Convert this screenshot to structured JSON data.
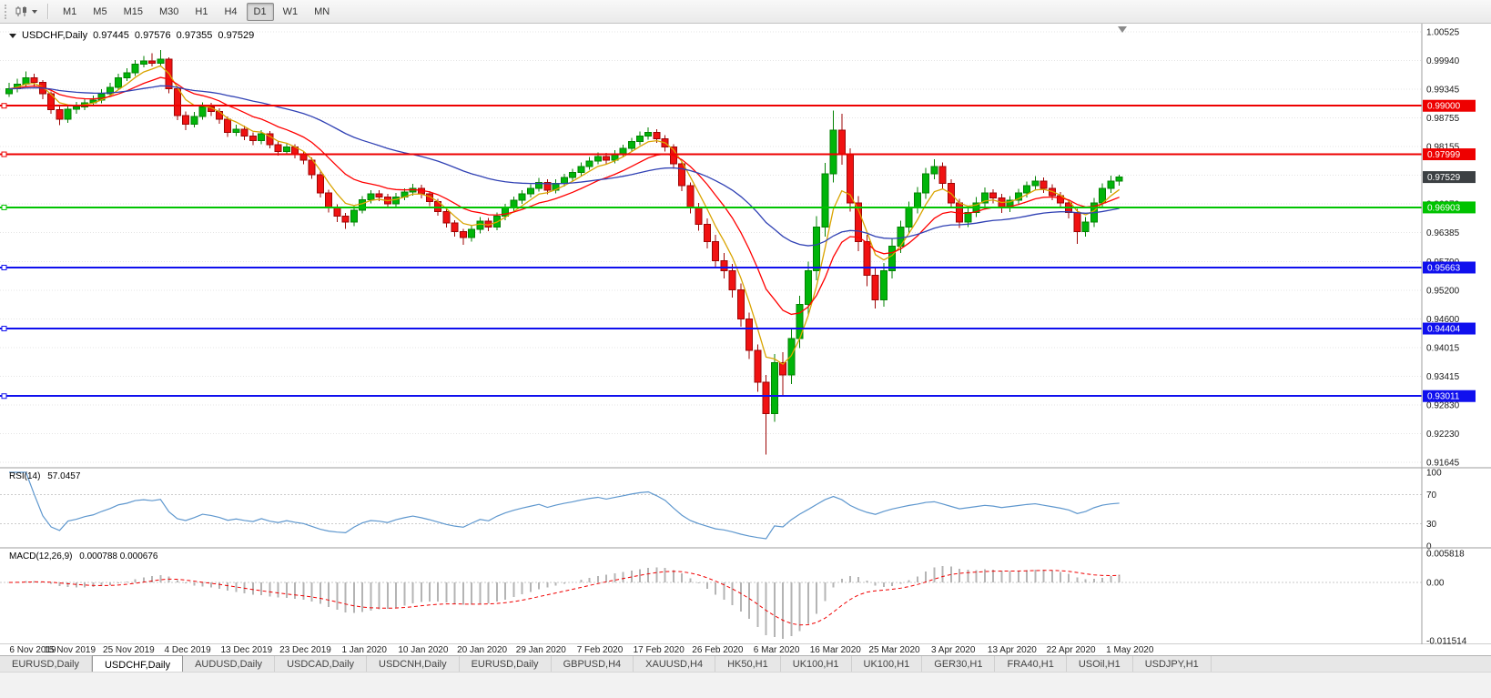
{
  "toolbar": {
    "timeframes": [
      "M1",
      "M5",
      "M15",
      "M30",
      "H1",
      "H4",
      "D1",
      "W1",
      "MN"
    ],
    "active_timeframe": "D1"
  },
  "chart": {
    "title": "USDCHF,Daily",
    "ohlc": {
      "open": "0.97445",
      "high": "0.97576",
      "low": "0.97355",
      "close": "0.97529"
    }
  },
  "chart_data": {
    "type": "candlestick",
    "symbol": "USDCHF",
    "timeframe": "Daily",
    "x_labels": [
      "6 Nov 2019",
      "15 Nov 2019",
      "25 Nov 2019",
      "4 Dec 2019",
      "13 Dec 2019",
      "23 Dec 2019",
      "1 Jan 2020",
      "10 Jan 2020",
      "20 Jan 2020",
      "29 Jan 2020",
      "7 Feb 2020",
      "17 Feb 2020",
      "26 Feb 2020",
      "6 Mar 2020",
      "16 Mar 2020",
      "25 Mar 2020",
      "3 Apr 2020",
      "13 Apr 2020",
      "22 Apr 2020",
      "1 May 2020"
    ],
    "y_axis_labels": [
      "1.00525",
      "0.99940",
      "0.99345",
      "0.98755",
      "0.98155",
      "0.97570",
      "0.96970",
      "0.96385",
      "0.95790",
      "0.95200",
      "0.94600",
      "0.94015",
      "0.93415",
      "0.92830",
      "0.92230",
      "0.91645"
    ],
    "y_axis_range": {
      "top": 1.00525,
      "bottom": 0.91645
    },
    "colors": {
      "up": "#00B50A",
      "up_border": "#038203",
      "down": "#F01212",
      "down_border": "#9E0505",
      "grid": "#E4E4E4"
    },
    "candles": [
      [
        0.9925,
        0.9947,
        0.9918,
        0.9935
      ],
      [
        0.9935,
        0.9956,
        0.9928,
        0.9945
      ],
      [
        0.9945,
        0.9971,
        0.994,
        0.9958
      ],
      [
        0.9958,
        0.9966,
        0.9939,
        0.9948
      ],
      [
        0.9948,
        0.9953,
        0.9914,
        0.9925
      ],
      [
        0.9925,
        0.993,
        0.9884,
        0.9892
      ],
      [
        0.9892,
        0.9899,
        0.986,
        0.9872
      ],
      [
        0.9872,
        0.9901,
        0.9865,
        0.9893
      ],
      [
        0.9893,
        0.9908,
        0.9884,
        0.9898
      ],
      [
        0.9898,
        0.9915,
        0.9891,
        0.9906
      ],
      [
        0.9906,
        0.9921,
        0.9899,
        0.9912
      ],
      [
        0.9912,
        0.9934,
        0.9905,
        0.9925
      ],
      [
        0.9925,
        0.9947,
        0.9919,
        0.9938
      ],
      [
        0.9938,
        0.9966,
        0.9932,
        0.9958
      ],
      [
        0.9958,
        0.9977,
        0.9951,
        0.9968
      ],
      [
        0.9968,
        0.9994,
        0.9961,
        0.9986
      ],
      [
        0.9986,
        1.0003,
        0.9979,
        0.9992
      ],
      [
        0.9992,
        1.0008,
        0.9981,
        0.9988
      ],
      [
        0.9988,
        1.0015,
        0.9982,
        0.9996
      ],
      [
        0.9996,
        1.0,
        0.9926,
        0.9935
      ],
      [
        0.9935,
        0.9941,
        0.987,
        0.988
      ],
      [
        0.988,
        0.9888,
        0.985,
        0.9862
      ],
      [
        0.9862,
        0.9887,
        0.9855,
        0.9878
      ],
      [
        0.9878,
        0.9907,
        0.9871,
        0.9898
      ],
      [
        0.9898,
        0.9906,
        0.9879,
        0.9888
      ],
      [
        0.9888,
        0.9895,
        0.9863,
        0.9872
      ],
      [
        0.9872,
        0.9878,
        0.9836,
        0.9845
      ],
      [
        0.9845,
        0.9861,
        0.9838,
        0.9852
      ],
      [
        0.9852,
        0.9859,
        0.9829,
        0.9838
      ],
      [
        0.9838,
        0.9845,
        0.9819,
        0.9828
      ],
      [
        0.9828,
        0.985,
        0.9821,
        0.9842
      ],
      [
        0.9842,
        0.9848,
        0.9812,
        0.982
      ],
      [
        0.982,
        0.9827,
        0.9797,
        0.9806
      ],
      [
        0.9806,
        0.9823,
        0.9799,
        0.9815
      ],
      [
        0.9815,
        0.9821,
        0.9792,
        0.98
      ],
      [
        0.98,
        0.9806,
        0.9779,
        0.9788
      ],
      [
        0.9788,
        0.9793,
        0.9749,
        0.9758
      ],
      [
        0.9758,
        0.9764,
        0.9711,
        0.972
      ],
      [
        0.972,
        0.9727,
        0.968,
        0.969
      ],
      [
        0.969,
        0.9697,
        0.966,
        0.9672
      ],
      [
        0.9672,
        0.9679,
        0.9646,
        0.966
      ],
      [
        0.966,
        0.9693,
        0.9652,
        0.9685
      ],
      [
        0.9685,
        0.9714,
        0.9678,
        0.9706
      ],
      [
        0.9706,
        0.9726,
        0.9699,
        0.9718
      ],
      [
        0.9718,
        0.9726,
        0.9703,
        0.9712
      ],
      [
        0.9712,
        0.9718,
        0.9689,
        0.9698
      ],
      [
        0.9698,
        0.972,
        0.9691,
        0.9712
      ],
      [
        0.9712,
        0.973,
        0.9705,
        0.9722
      ],
      [
        0.9722,
        0.9739,
        0.9715,
        0.973
      ],
      [
        0.973,
        0.9737,
        0.9709,
        0.9718
      ],
      [
        0.9718,
        0.9724,
        0.9693,
        0.9702
      ],
      [
        0.9702,
        0.9708,
        0.9673,
        0.9682
      ],
      [
        0.9682,
        0.9688,
        0.9649,
        0.9658
      ],
      [
        0.9658,
        0.9664,
        0.963,
        0.964
      ],
      [
        0.964,
        0.9646,
        0.9613,
        0.9628
      ],
      [
        0.9628,
        0.9653,
        0.962,
        0.9645
      ],
      [
        0.9645,
        0.967,
        0.9637,
        0.9662
      ],
      [
        0.9662,
        0.9669,
        0.9641,
        0.965
      ],
      [
        0.965,
        0.968,
        0.9643,
        0.9672
      ],
      [
        0.9672,
        0.9698,
        0.9664,
        0.969
      ],
      [
        0.969,
        0.9713,
        0.9683,
        0.9705
      ],
      [
        0.9705,
        0.9726,
        0.9698,
        0.9718
      ],
      [
        0.9718,
        0.9738,
        0.9711,
        0.973
      ],
      [
        0.973,
        0.9751,
        0.9723,
        0.9742
      ],
      [
        0.9742,
        0.9748,
        0.9717,
        0.9726
      ],
      [
        0.9726,
        0.9748,
        0.9719,
        0.974
      ],
      [
        0.974,
        0.976,
        0.9733,
        0.9752
      ],
      [
        0.9752,
        0.977,
        0.9745,
        0.9762
      ],
      [
        0.9762,
        0.9783,
        0.9755,
        0.9775
      ],
      [
        0.9775,
        0.9794,
        0.9768,
        0.9786
      ],
      [
        0.9786,
        0.9804,
        0.9779,
        0.9795
      ],
      [
        0.9795,
        0.9803,
        0.9779,
        0.9788
      ],
      [
        0.9788,
        0.9808,
        0.9781,
        0.98
      ],
      [
        0.98,
        0.982,
        0.9793,
        0.9812
      ],
      [
        0.9812,
        0.9834,
        0.9805,
        0.9826
      ],
      [
        0.9826,
        0.9847,
        0.9819,
        0.9838
      ],
      [
        0.9838,
        0.9855,
        0.983,
        0.9845
      ],
      [
        0.9845,
        0.9852,
        0.9823,
        0.9832
      ],
      [
        0.9832,
        0.9839,
        0.9806,
        0.9815
      ],
      [
        0.9815,
        0.9821,
        0.977,
        0.978
      ],
      [
        0.978,
        0.9786,
        0.9724,
        0.9735
      ],
      [
        0.9735,
        0.9742,
        0.9678,
        0.969
      ],
      [
        0.969,
        0.97,
        0.9642,
        0.9655
      ],
      [
        0.9655,
        0.9668,
        0.9606,
        0.962
      ],
      [
        0.962,
        0.9634,
        0.9566,
        0.958
      ],
      [
        0.958,
        0.9596,
        0.9544,
        0.956
      ],
      [
        0.956,
        0.9574,
        0.9504,
        0.952
      ],
      [
        0.952,
        0.9533,
        0.9444,
        0.946
      ],
      [
        0.946,
        0.9473,
        0.9378,
        0.9395
      ],
      [
        0.9395,
        0.9408,
        0.931,
        0.933
      ],
      [
        0.933,
        0.9345,
        0.918,
        0.9265
      ],
      [
        0.9265,
        0.9388,
        0.9248,
        0.937
      ],
      [
        0.937,
        0.9392,
        0.93,
        0.9345
      ],
      [
        0.9345,
        0.944,
        0.9326,
        0.942
      ],
      [
        0.942,
        0.9508,
        0.94,
        0.949
      ],
      [
        0.949,
        0.9578,
        0.9468,
        0.956
      ],
      [
        0.956,
        0.9672,
        0.954,
        0.965
      ],
      [
        0.965,
        0.9782,
        0.963,
        0.976
      ],
      [
        0.976,
        0.989,
        0.9742,
        0.985
      ],
      [
        0.985,
        0.9884,
        0.9778,
        0.98
      ],
      [
        0.98,
        0.9812,
        0.9682,
        0.97
      ],
      [
        0.97,
        0.9714,
        0.96,
        0.962
      ],
      [
        0.962,
        0.9634,
        0.9528,
        0.955
      ],
      [
        0.955,
        0.9566,
        0.9482,
        0.95
      ],
      [
        0.95,
        0.9576,
        0.9486,
        0.956
      ],
      [
        0.956,
        0.9626,
        0.9544,
        0.961
      ],
      [
        0.961,
        0.9663,
        0.9596,
        0.965
      ],
      [
        0.965,
        0.9702,
        0.9637,
        0.969
      ],
      [
        0.969,
        0.9732,
        0.9678,
        0.972
      ],
      [
        0.972,
        0.9772,
        0.9708,
        0.976
      ],
      [
        0.976,
        0.979,
        0.9748,
        0.9775
      ],
      [
        0.9775,
        0.9783,
        0.9728,
        0.974
      ],
      [
        0.974,
        0.9748,
        0.9688,
        0.97
      ],
      [
        0.97,
        0.9708,
        0.9648,
        0.966
      ],
      [
        0.966,
        0.9692,
        0.965,
        0.968
      ],
      [
        0.968,
        0.9712,
        0.967,
        0.97
      ],
      [
        0.97,
        0.9731,
        0.9691,
        0.972
      ],
      [
        0.972,
        0.9728,
        0.9699,
        0.971
      ],
      [
        0.971,
        0.9718,
        0.9679,
        0.969
      ],
      [
        0.969,
        0.9714,
        0.9681,
        0.9705
      ],
      [
        0.9705,
        0.9729,
        0.9696,
        0.972
      ],
      [
        0.972,
        0.9744,
        0.9711,
        0.9735
      ],
      [
        0.9735,
        0.9755,
        0.9726,
        0.9745
      ],
      [
        0.9745,
        0.9752,
        0.972,
        0.973
      ],
      [
        0.973,
        0.9738,
        0.9705,
        0.9715
      ],
      [
        0.9715,
        0.9722,
        0.969,
        0.97
      ],
      [
        0.97,
        0.9707,
        0.9668,
        0.968
      ],
      [
        0.968,
        0.9687,
        0.9615,
        0.964
      ],
      [
        0.964,
        0.967,
        0.963,
        0.966
      ],
      [
        0.966,
        0.971,
        0.965,
        0.97
      ],
      [
        0.97,
        0.974,
        0.9692,
        0.973
      ],
      [
        0.973,
        0.9756,
        0.972,
        0.9745
      ],
      [
        0.97445,
        0.97576,
        0.97355,
        0.97529
      ]
    ],
    "moving_averages": [
      {
        "period": 5,
        "color": "#D9A400"
      },
      {
        "period": 13,
        "color": "#FF0000"
      },
      {
        "period": 40,
        "color": "#3041B4"
      }
    ],
    "h_lines": [
      {
        "price": 0.99,
        "label": "0.99000",
        "color": "#EE0000"
      },
      {
        "price": 0.97999,
        "label": "0.97999",
        "color": "#EE0000"
      },
      {
        "price": 0.96903,
        "label": "0.96903",
        "color": "#00C300"
      },
      {
        "price": 0.95663,
        "label": "0.95663",
        "color": "#1010EE"
      },
      {
        "price": 0.94404,
        "label": "0.94404",
        "color": "#1010EE"
      },
      {
        "price": 0.93011,
        "label": "0.93011",
        "color": "#1010EE"
      }
    ],
    "current_price": {
      "value": "0.97529",
      "color": "#3C4043"
    },
    "rsi": {
      "label": "RSI(14)",
      "value": "57.0457",
      "period": 14,
      "levels": [
        "100",
        "70",
        "30",
        "0"
      ],
      "line_color": "#5E97CE"
    },
    "macd": {
      "label": "MACD(12,26,9)",
      "values": "0.000788 0.000676",
      "fast": 12,
      "slow": 26,
      "signal": 9,
      "axis_labels": [
        "0.005818",
        "0.00",
        "-0.011514"
      ],
      "histogram_color": "#B4B4B4",
      "signal_color": "#F00000"
    }
  },
  "tabs": {
    "items": [
      {
        "label": "EURUSD,Daily"
      },
      {
        "label": "USDCHF,Daily"
      },
      {
        "label": "AUDUSD,Daily"
      },
      {
        "label": "USDCAD,Daily"
      },
      {
        "label": "USDCNH,Daily"
      },
      {
        "label": "EURUSD,Daily"
      },
      {
        "label": "GBPUSD,H4"
      },
      {
        "label": "XAUUSD,H4"
      },
      {
        "label": "HK50,H1"
      },
      {
        "label": "UK100,H1"
      },
      {
        "label": "UK100,H1"
      },
      {
        "label": "GER30,H1"
      },
      {
        "label": "FRA40,H1"
      },
      {
        "label": "USOil,H1"
      },
      {
        "label": "USDJPY,H1"
      }
    ],
    "active_index": 1
  }
}
